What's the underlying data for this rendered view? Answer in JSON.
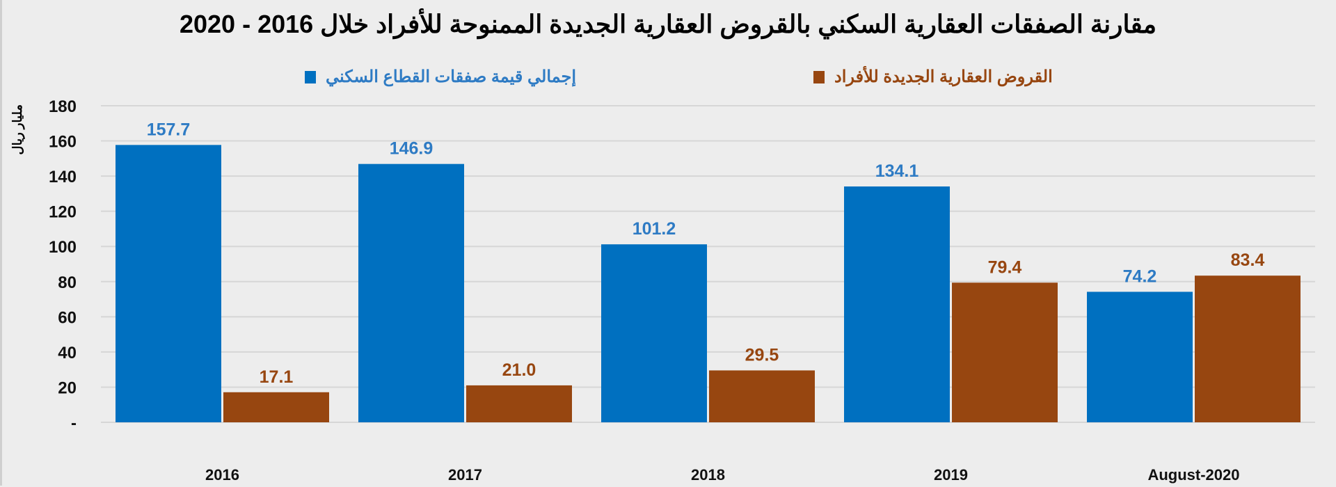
{
  "chart_data": {
    "type": "bar",
    "title": "مقارنة الصفقات العقارية السكني بالقروض العقارية الجديدة الممنوحة للأفراد خلال 2016 - 2020",
    "ylabel": "مليار ريال",
    "xlabel": "",
    "categories": [
      "2016",
      "2017",
      "2018",
      "2019",
      "August-2020"
    ],
    "series": [
      {
        "name": "إجمالي قيمة صفقات القطاع السكني",
        "color": "#0070C0",
        "label_color": "#2E7BC4",
        "values": [
          157.7,
          146.9,
          101.2,
          134.1,
          74.2
        ],
        "labels": [
          "157.7",
          "146.9",
          "101.2",
          "134.1",
          "74.2"
        ]
      },
      {
        "name": "القروض العقارية الجديدة للأفراد",
        "color": "#974610",
        "label_color": "#974610",
        "values": [
          17.1,
          21.0,
          29.5,
          79.4,
          83.4
        ],
        "labels": [
          "17.1",
          "21.0",
          "29.5",
          "79.4",
          "83.4"
        ]
      }
    ],
    "ylim": [
      0,
      180
    ],
    "yticks": [
      "-",
      "20",
      "40",
      "60",
      "80",
      "100",
      "120",
      "140",
      "160",
      "180"
    ],
    "grid": true,
    "legend_position": "top"
  }
}
